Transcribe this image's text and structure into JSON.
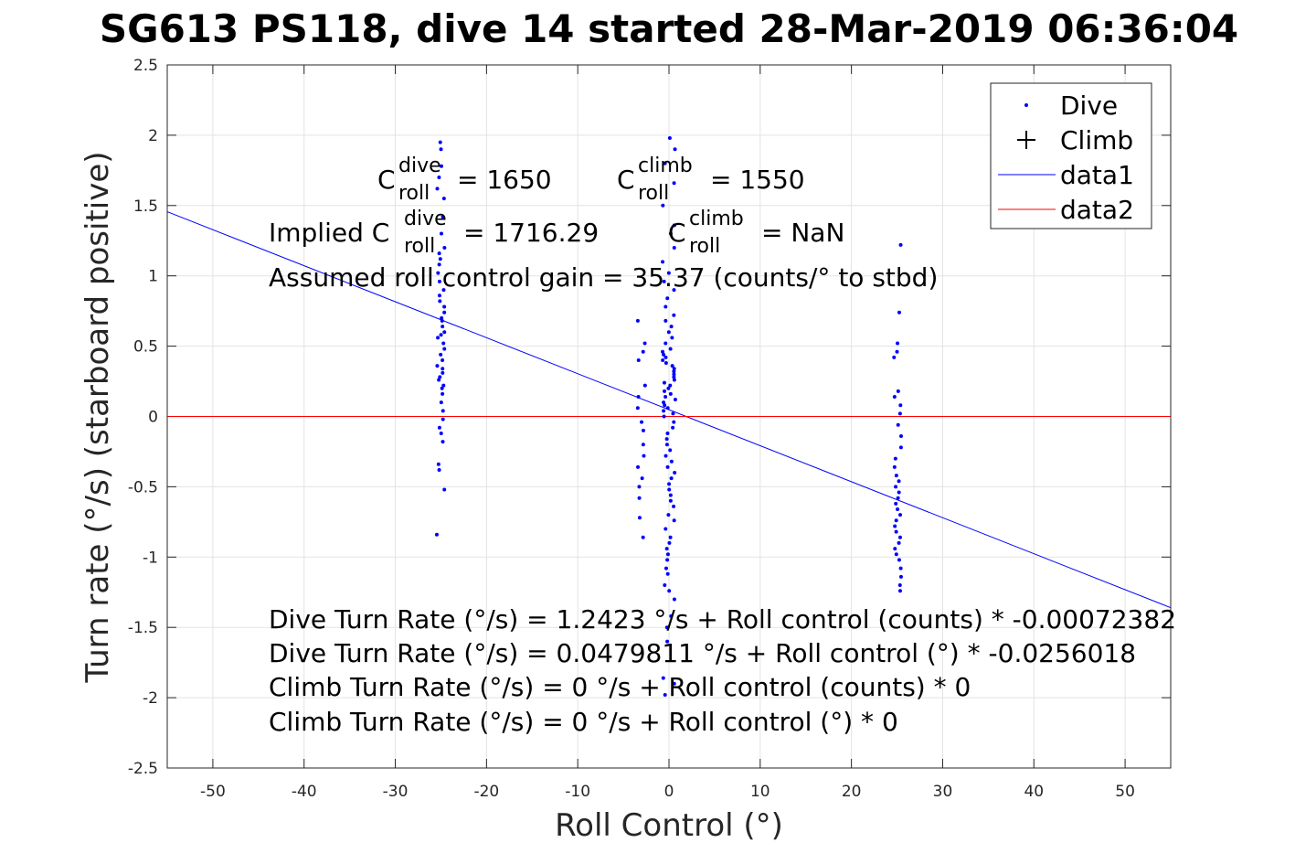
{
  "chart_data": {
    "type": "scatter",
    "title": "SG613 PS118, dive 14 started 28-Mar-2019 06:36:04",
    "xlabel": "Roll Control (°)",
    "ylabel": "Turn rate (°/s) (starboard positive)",
    "xlim": [
      -55,
      55
    ],
    "ylim": [
      -2.5,
      2.5
    ],
    "grid": true,
    "legend_position": "top-right",
    "x_tick_labels": [
      "-50",
      "-40",
      "-30",
      "-20",
      "-10",
      "0",
      "10",
      "20",
      "30",
      "40",
      "50"
    ],
    "y_tick_labels": [
      "2.5",
      "2",
      "1.5",
      "1",
      "0.5",
      "0",
      "-0.5",
      "-1",
      "-1.5",
      "-2",
      "-2.5"
    ],
    "series": [
      {
        "name": "Dive",
        "marker": "dot",
        "color": "#0000ff",
        "clusters": [
          {
            "x": -25,
            "y": [
              -0.84,
              -0.52,
              -0.38,
              -0.34,
              -0.18,
              -0.12,
              -0.08,
              -0.02,
              0.04,
              0.1,
              0.16,
              0.2,
              0.22,
              0.26,
              0.28,
              0.31,
              0.34,
              0.36,
              0.4,
              0.44,
              0.48,
              0.52,
              0.56,
              0.58,
              0.6,
              0.64,
              0.68,
              0.7,
              0.74,
              0.78,
              0.82,
              0.86,
              0.9,
              0.96,
              1.02,
              1.08,
              1.12,
              1.16,
              1.2,
              1.3,
              1.42,
              1.55,
              1.62,
              1.7,
              1.78,
              1.9,
              1.95
            ]
          },
          {
            "x": 0,
            "y": [
              -1.98,
              -1.9,
              -1.86,
              -1.6,
              -1.5,
              -1.42,
              -1.3,
              -1.24,
              -1.2,
              -1.12,
              -1.08,
              -1.02,
              -0.98,
              -0.94,
              -0.9,
              -0.86,
              -0.8,
              -0.74,
              -0.7,
              -0.64,
              -0.6,
              -0.56,
              -0.52,
              -0.48,
              -0.44,
              -0.4,
              -0.36,
              -0.32,
              -0.28,
              -0.24,
              -0.2,
              -0.16,
              -0.12,
              -0.08,
              -0.04,
              0.0,
              0.02,
              0.04,
              0.06,
              0.08,
              0.1,
              0.12,
              0.14,
              0.16,
              0.18,
              0.2,
              0.22,
              0.24,
              0.26,
              0.28,
              0.3,
              0.32,
              0.34,
              0.36,
              0.38,
              0.4,
              0.42,
              0.44,
              0.46,
              0.48,
              0.52,
              0.56,
              0.6,
              0.64,
              0.68,
              0.72,
              0.78,
              0.84,
              0.9,
              0.96,
              1.02,
              1.1,
              1.2,
              1.3,
              1.36,
              1.5,
              1.66,
              1.8,
              1.9,
              1.98
            ]
          },
          {
            "x": -3,
            "y": [
              -0.86,
              -0.72,
              -0.58,
              -0.5,
              -0.44,
              -0.36,
              -0.28,
              -0.2,
              -0.1,
              -0.04,
              0.06,
              0.14,
              0.22,
              0.4,
              0.46,
              0.52,
              0.68
            ]
          },
          {
            "x": 25,
            "y": [
              -1.24,
              -1.2,
              -1.14,
              -1.08,
              -1.02,
              -0.98,
              -0.94,
              -0.9,
              -0.86,
              -0.82,
              -0.78,
              -0.74,
              -0.7,
              -0.66,
              -0.62,
              -0.58,
              -0.54,
              -0.5,
              -0.46,
              -0.42,
              -0.36,
              -0.3,
              -0.22,
              -0.14,
              -0.06,
              0.02,
              0.08,
              0.14,
              0.18,
              0.42,
              0.46,
              0.52,
              0.74,
              1.22
            ]
          }
        ]
      },
      {
        "name": "Climb",
        "marker": "plus",
        "color": "#000000",
        "points": []
      },
      {
        "name": "data1",
        "type": "line",
        "color": "#0000ff",
        "x": [
          -55,
          55
        ],
        "y": [
          1.456,
          -1.36
        ]
      },
      {
        "name": "data2",
        "type": "line",
        "color": "#ff0000",
        "x": [
          -55,
          55
        ],
        "y": [
          0,
          0
        ]
      }
    ],
    "annotations": {
      "c_dive_prefix": "C",
      "c_dive_sup": "dive",
      "c_dive_sub": "roll",
      "c_dive_value": "= 1650",
      "c_climb_prefix": "C",
      "c_climb_sup": "climb",
      "c_climb_sub": "roll",
      "c_climb_value": "= 1550",
      "implied_prefix": "Implied C",
      "implied_dive_sup": "dive",
      "implied_dive_sub": "roll",
      "implied_dive_value": "= 1716.29",
      "implied_climb_prefix": "C",
      "implied_climb_sup": "climb",
      "implied_climb_sub": "roll",
      "implied_climb_value": "= NaN",
      "gain_line": "Assumed roll control gain = 35.37 (counts/° to stbd)",
      "eq1": "Dive Turn Rate (°/s) = 1.2423 °/s + Roll control (counts) * -0.00072382",
      "eq2": "Dive Turn Rate (°/s) = 0.0479811 °/s + Roll control (°) * -0.0256018",
      "eq3": "Climb Turn Rate (°/s) = 0 °/s + Roll control (counts) * 0",
      "eq4": "Climb Turn Rate (°/s) = 0 °/s + Roll control (°) * 0"
    }
  }
}
